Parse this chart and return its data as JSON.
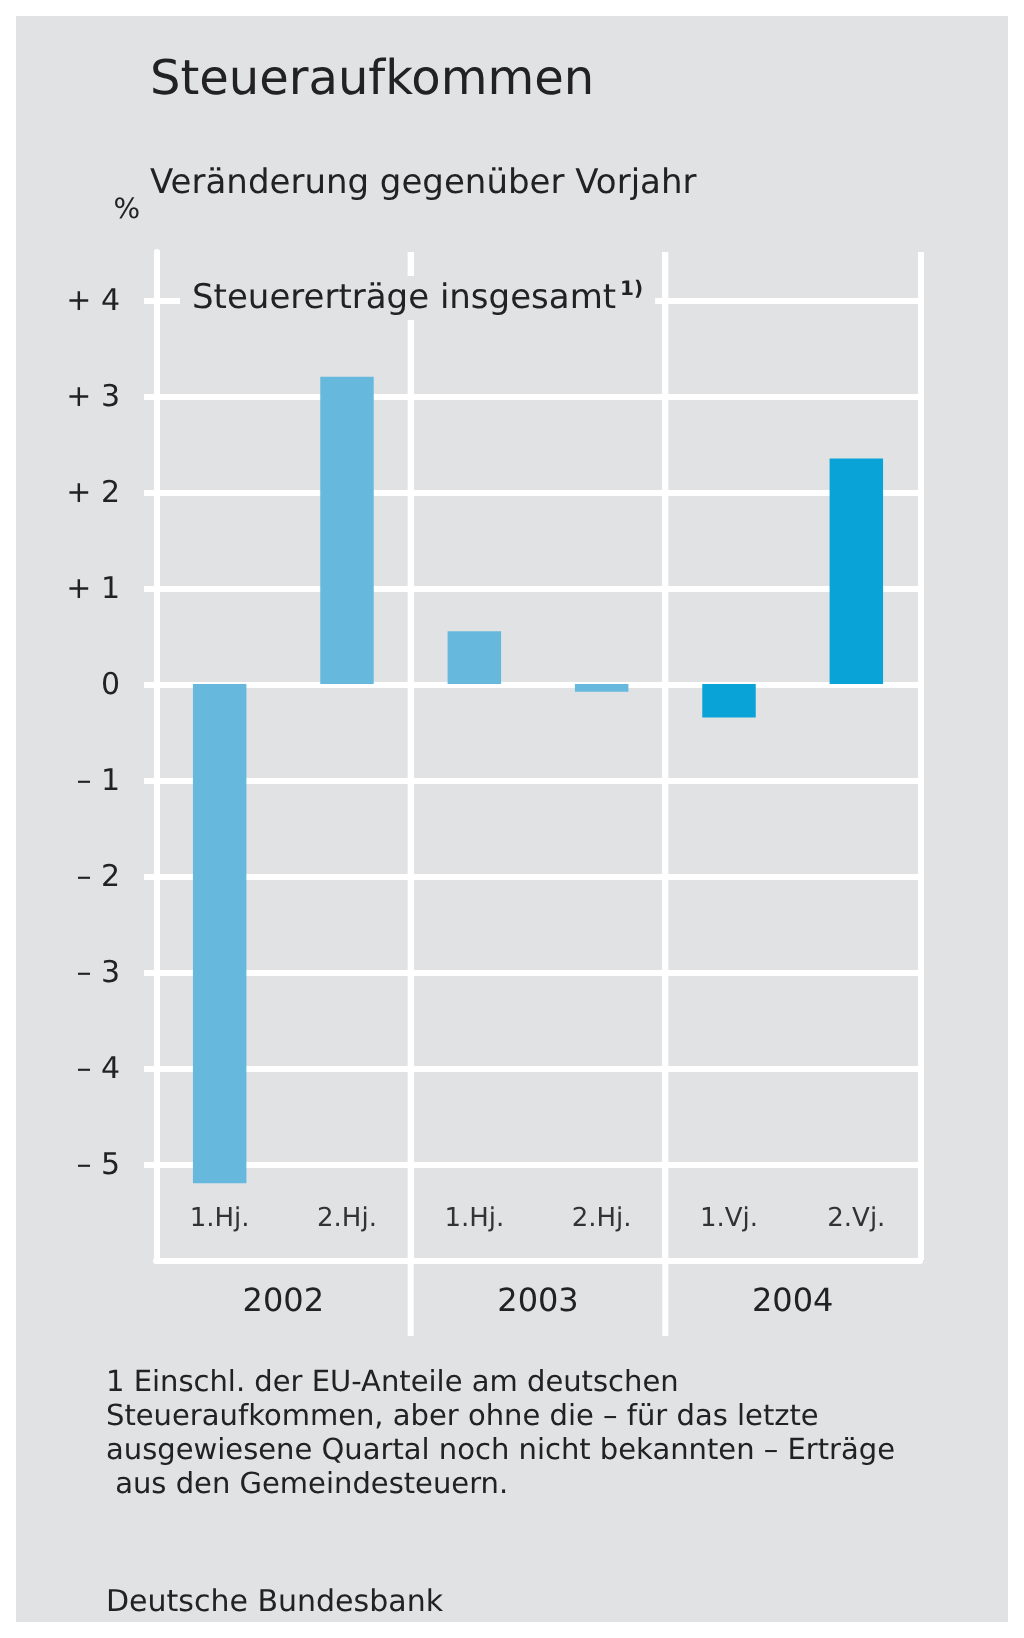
{
  "chart_data": {
    "type": "bar",
    "title": "Steueraufkommen",
    "subtitle": "Veränderung gegenüber Vorjahr",
    "ylabel": "%",
    "categories": [
      "1.Hj.",
      "2.Hj.",
      "1.Hj.",
      "2.Hj.",
      "1.Vj.",
      "2.Vj."
    ],
    "values": [
      -5.2,
      3.2,
      0.55,
      -0.08,
      -0.35,
      2.35
    ],
    "colors": [
      "#66b9dd",
      "#66b9dd",
      "#66b9dd",
      "#66b9dd",
      "#0aa3d8",
      "#0aa3d8"
    ],
    "ylim": [
      -6,
      4.5
    ],
    "yticks": [
      {
        "value": -5,
        "label": "– 5"
      },
      {
        "value": -4,
        "label": "– 4"
      },
      {
        "value": -3,
        "label": "– 3"
      },
      {
        "value": -2,
        "label": "– 2"
      },
      {
        "value": -1,
        "label": "– 1"
      },
      0,
      {
        "value": 1,
        "label": "+ 1"
      },
      {
        "value": 2,
        "label": "+ 2"
      },
      {
        "value": 3,
        "label": "+ 3"
      },
      {
        "value": 4,
        "label": "+ 4"
      }
    ],
    "grid": true,
    "annotations": [
      "Steuererträge insgesamt$^{1)}$",
      "2002",
      "2003",
      "2004",
      "1 Einschl. der EU-Anteile am deutschen Steueraufkommen, aber ohne die – für das letzte ausgewiesene Quartal noch nicht bekannten – Erträge aus den Gemeindesteuern.",
      "Deutsche Bundesbank"
    ]
  }
}
